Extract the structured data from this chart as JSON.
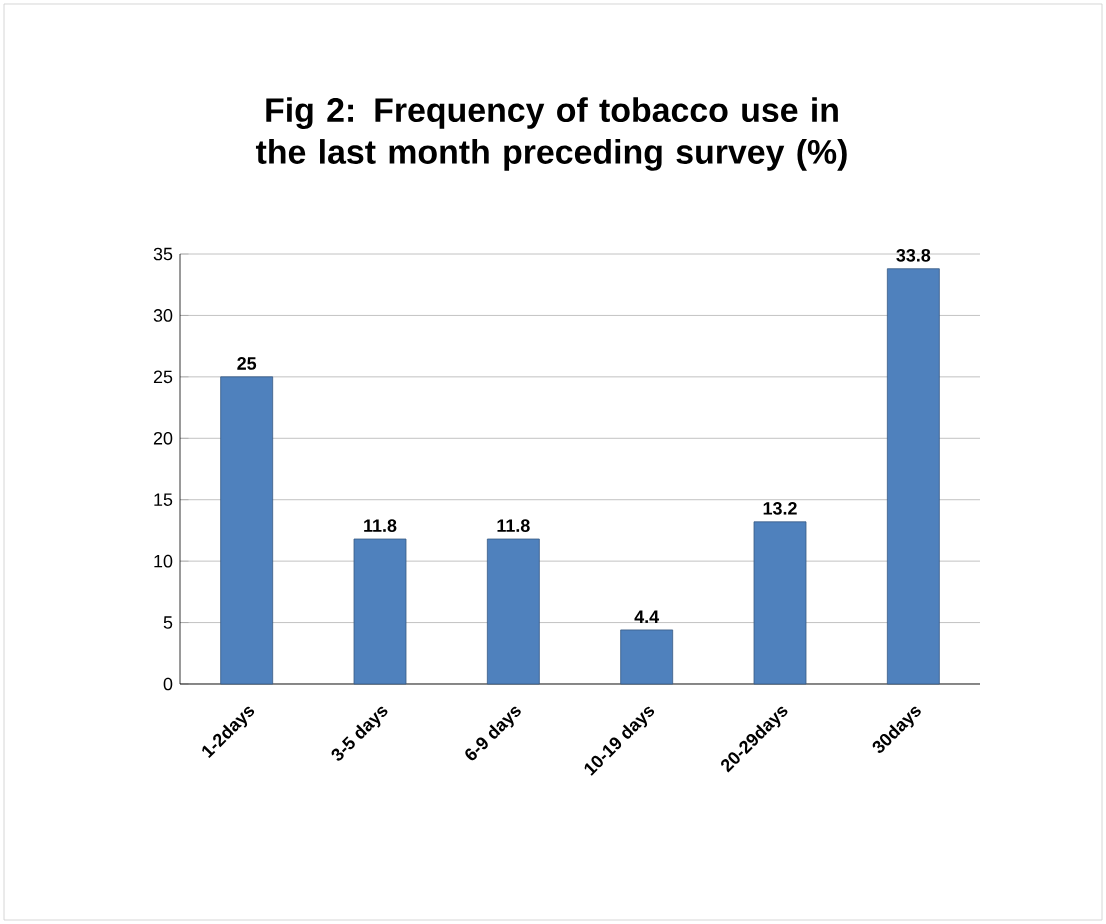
{
  "chart_data": {
    "type": "bar",
    "title": "Fig 2: Frequency of tobacco use in the last month preceding survey (%)",
    "categories": [
      "1-2days",
      "3-5 days",
      "6-9 days",
      "10-19 days",
      "20-29days",
      "30days"
    ],
    "values": [
      25,
      11.8,
      11.8,
      4.4,
      13.2,
      33.8
    ],
    "color": "#4f81bd",
    "ylim": [
      0,
      35
    ],
    "yticks": [
      0,
      5,
      10,
      15,
      20,
      25,
      30,
      35
    ],
    "grid": "y",
    "data_labels": true
  }
}
